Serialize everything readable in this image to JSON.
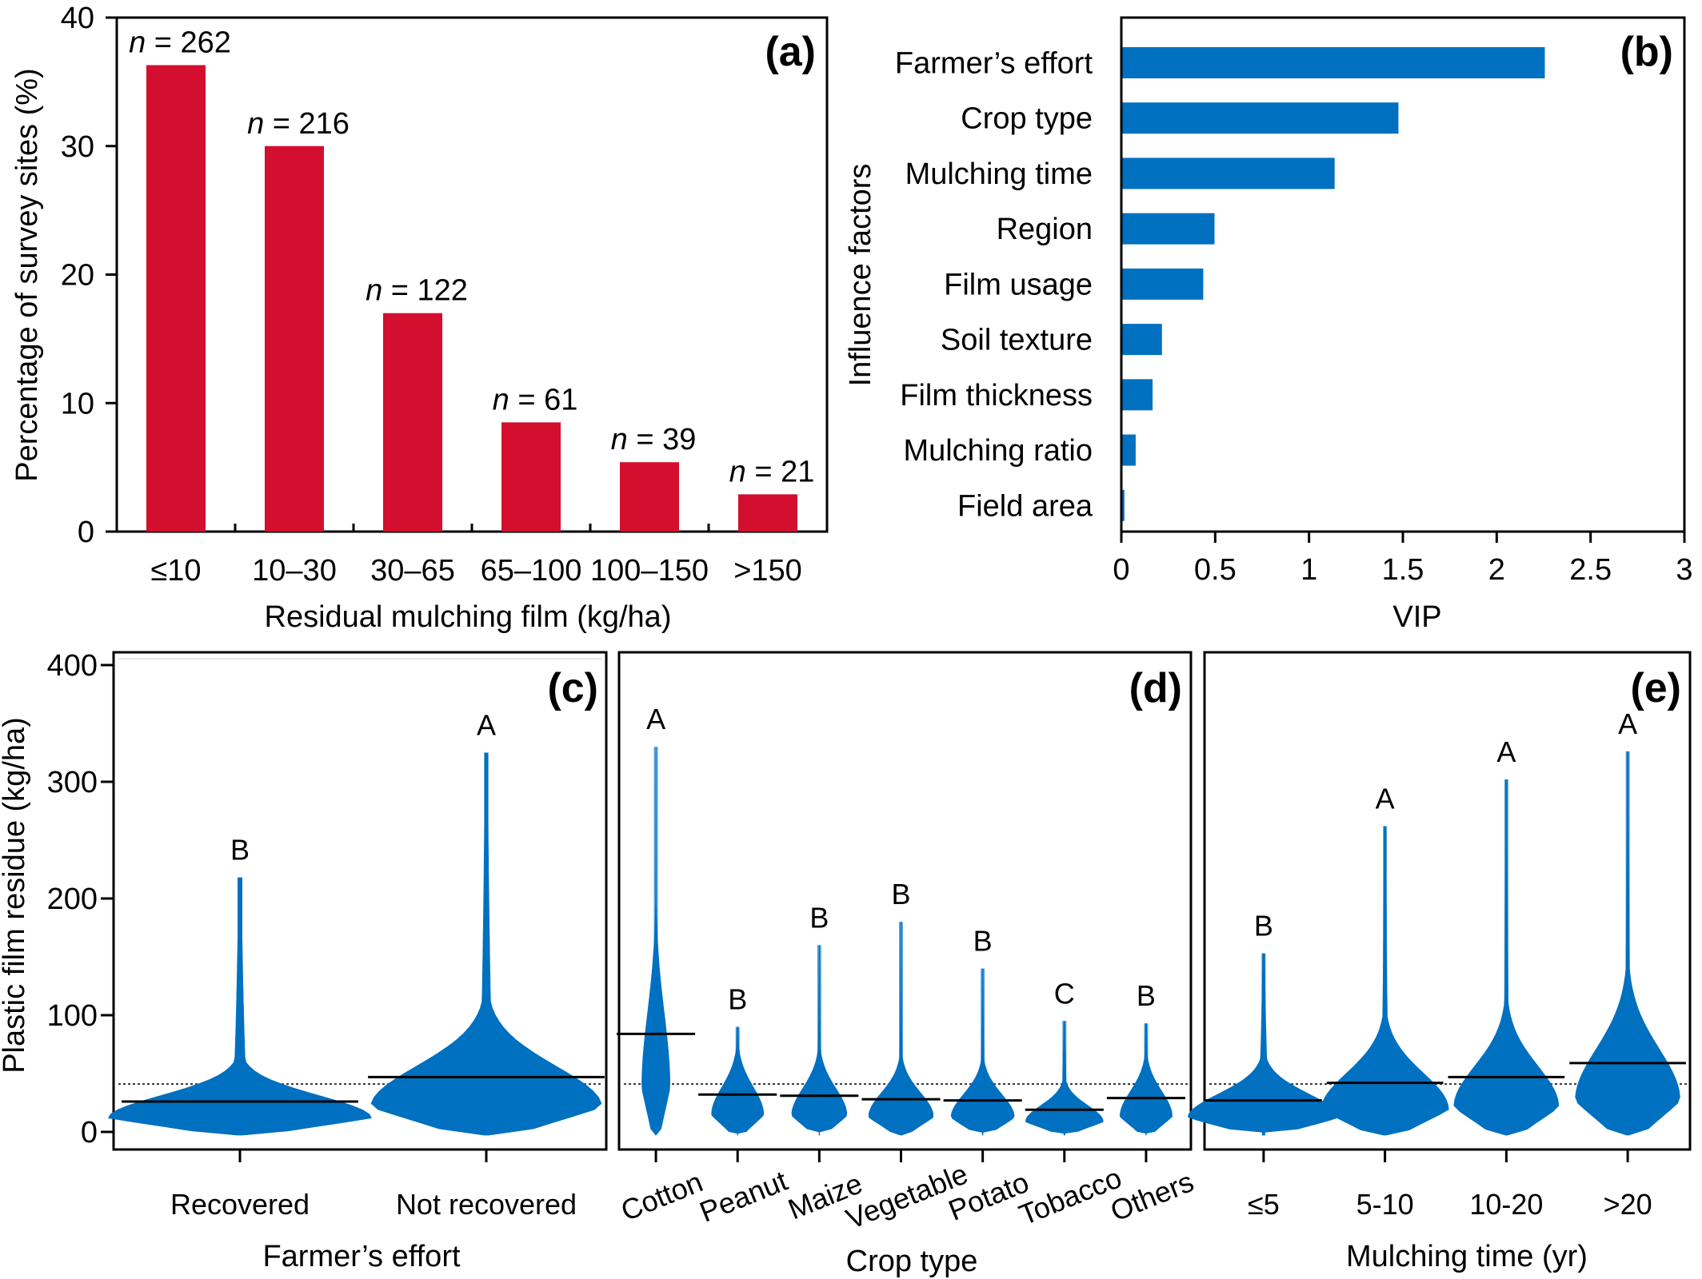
{
  "colors": {
    "bar_red": "#D30E2E",
    "bar_blue": "#0070C0",
    "violin_blue": "#0070C0",
    "violin_light": "#5BA3D9",
    "axis": "#000000"
  },
  "chart_data": [
    {
      "id": "a",
      "type": "bar",
      "panel_tag": "(a)",
      "title": "",
      "xlabel": "Residual mulching film (kg/ha)",
      "ylabel": "Percentage of survey sites (%)",
      "categories": [
        "≤10",
        "10–30",
        "30–65",
        "65–100",
        "100–150",
        ">150"
      ],
      "values": [
        36.3,
        30.0,
        17.0,
        8.5,
        5.4,
        2.9
      ],
      "annotations": [
        {
          "prefix": "n",
          "text": " = 262"
        },
        {
          "prefix": "n",
          "text": " = 216"
        },
        {
          "prefix": "n",
          "text": " = 122"
        },
        {
          "prefix": "n",
          "text": " = 61"
        },
        {
          "prefix": "n",
          "text": " = 39"
        },
        {
          "prefix": "n",
          "text": " = 21"
        }
      ],
      "ylim": [
        0,
        40
      ],
      "yticks": [
        "0",
        "10",
        "20",
        "30",
        "40"
      ],
      "ytick_values": [
        0,
        10,
        20,
        30,
        40
      ],
      "grid": false,
      "legend": "none"
    },
    {
      "id": "b",
      "type": "bar",
      "orientation": "horizontal",
      "panel_tag": "(b)",
      "xlabel": "VIP",
      "ylabel": "Influence factors",
      "categories": [
        "Farmer’s effort",
        "Crop type",
        "Mulching time",
        "Region",
        "Film usage",
        "Soil texture",
        "Film thickness",
        "Mulching ratio",
        "Field area"
      ],
      "values": [
        2.25,
        1.47,
        1.13,
        0.49,
        0.43,
        0.21,
        0.16,
        0.07,
        0.01
      ],
      "xlim": [
        0,
        3
      ],
      "xticks": [
        "0",
        "0.5",
        "1",
        "1.5",
        "2",
        "2.5",
        "3"
      ],
      "xtick_values": [
        0,
        0.5,
        1,
        1.5,
        2,
        2.5,
        3
      ],
      "grid": false,
      "legend": "none"
    },
    {
      "id": "c",
      "type": "violin",
      "panel_tag": "(c)",
      "xlabel": "Farmer’s effort",
      "ylabel": "Plastic film residue (kg/ha)",
      "categories": [
        "Recovered",
        "Not recovered"
      ],
      "medians": [
        26,
        47
      ],
      "maxima": [
        218,
        325
      ],
      "letters": [
        "B",
        "A"
      ],
      "reference_line": 41,
      "ylim": [
        -18,
        415
      ],
      "yticks": [
        "0",
        "100",
        "200",
        "300",
        "400"
      ],
      "ytick_values": [
        0,
        100,
        200,
        300,
        400
      ]
    },
    {
      "id": "d",
      "type": "violin",
      "panel_tag": "(d)",
      "xlabel": "Crop type",
      "categories": [
        "Cotton",
        "Peanut",
        "Maize",
        "Vegetable",
        "Potato",
        "Tobacco",
        "Others"
      ],
      "medians": [
        84,
        32,
        31,
        28,
        27,
        19,
        29
      ],
      "maxima": [
        330,
        90,
        160,
        180,
        140,
        95,
        93
      ],
      "letters": [
        "A",
        "B",
        "B",
        "B",
        "B",
        "C",
        "B"
      ],
      "reference_line": 41,
      "ylim": [
        -18,
        415
      ]
    },
    {
      "id": "e",
      "type": "violin",
      "panel_tag": "(e)",
      "xlabel": "Mulching time (yr)",
      "categories": [
        "≤5",
        "5-10",
        "10-20",
        ">20"
      ],
      "medians": [
        27,
        42,
        47,
        59
      ],
      "maxima": [
        153,
        262,
        302,
        326
      ],
      "letters": [
        "B",
        "A",
        "A",
        "A"
      ],
      "reference_line": 41,
      "ylim": [
        -18,
        415
      ]
    }
  ]
}
